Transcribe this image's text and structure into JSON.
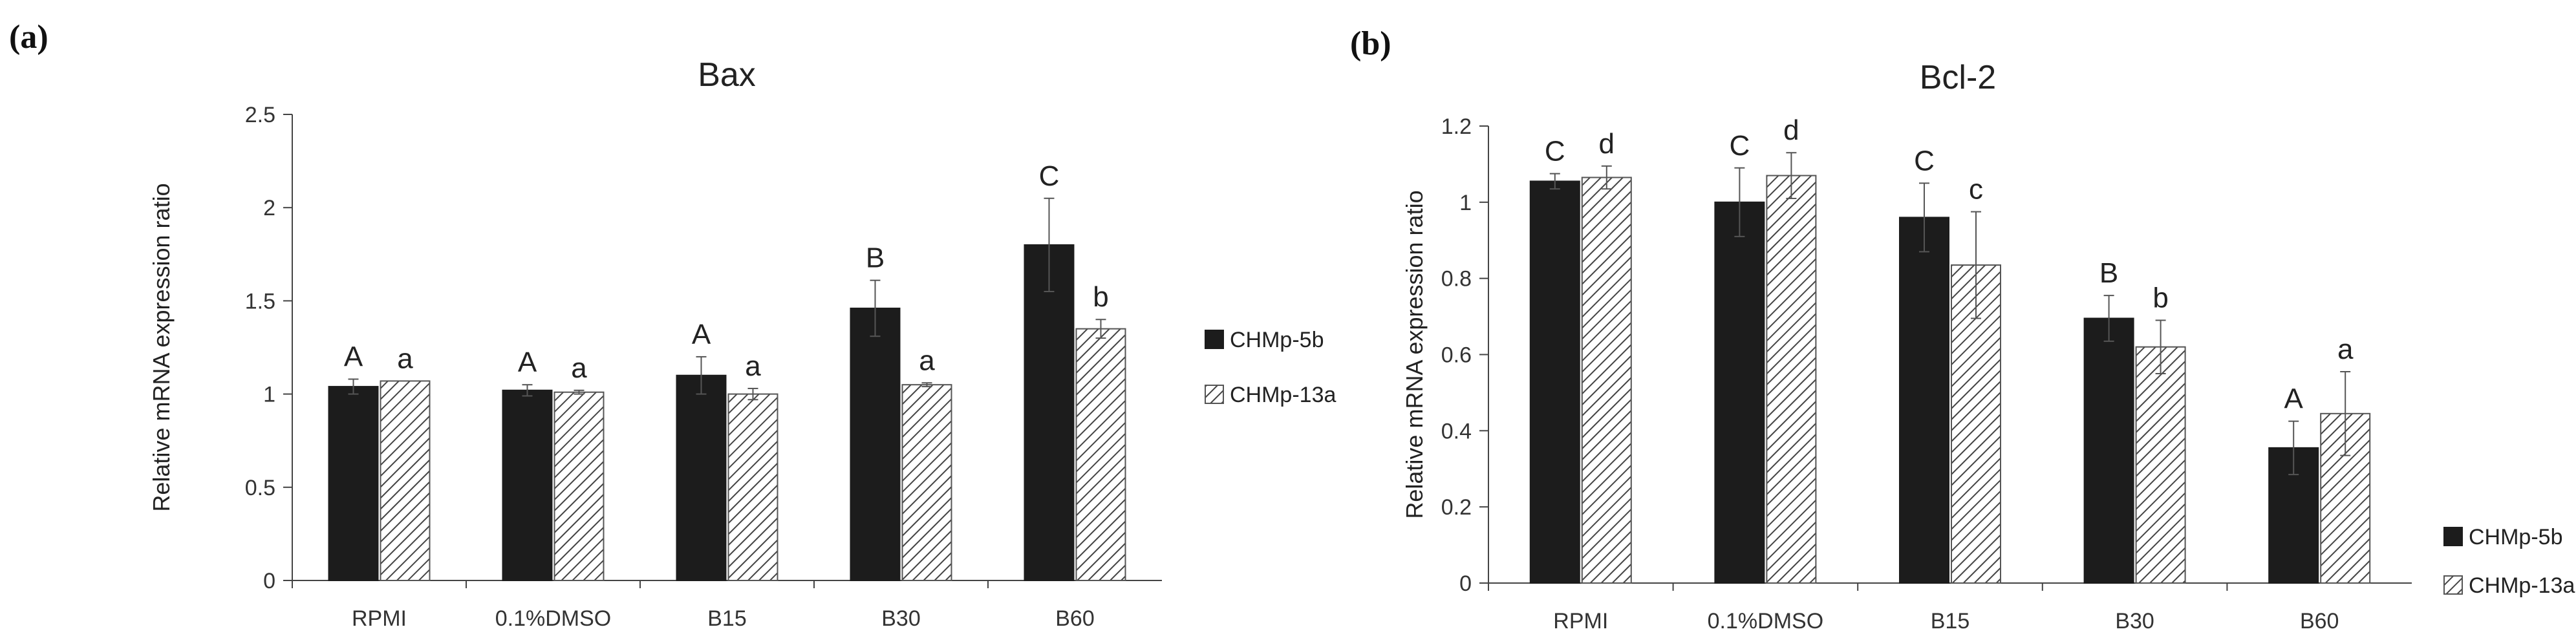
{
  "chart_data": [
    {
      "panel": "(a)",
      "type": "bar",
      "title": "Bax",
      "xlabel": "",
      "ylabel": "Relative mRNA expression ratio",
      "ylim": [
        0,
        2.5
      ],
      "yticks": [
        0,
        0.5,
        1,
        1.5,
        2,
        2.5
      ],
      "ytick_labels": [
        "0",
        "0.5",
        "1",
        "1.5",
        "2",
        "2.5"
      ],
      "categories": [
        "RPMI",
        "0.1%DMSO",
        "B15",
        "B30",
        "B60"
      ],
      "series": [
        {
          "name": "CHMp-5b",
          "pattern": "solid",
          "values": [
            1.04,
            1.02,
            1.1,
            1.46,
            1.8
          ],
          "errors": [
            0.04,
            0.03,
            0.1,
            0.15,
            0.25
          ],
          "letters": [
            "A",
            "A",
            "A",
            "B",
            "C"
          ]
        },
        {
          "name": "CHMp-13a",
          "pattern": "hatched",
          "values": [
            1.07,
            1.01,
            1.0,
            1.05,
            1.35
          ],
          "errors": [
            0.0,
            0.01,
            0.03,
            0.01,
            0.05
          ],
          "letters": [
            "a",
            "a",
            "a",
            "a",
            "b"
          ]
        }
      ],
      "legend_position": "right",
      "grid": false
    },
    {
      "panel": "(b)",
      "type": "bar",
      "title": "Bcl-2",
      "xlabel": "",
      "ylabel": "Relative mRNA expression ratio",
      "ylim": [
        0,
        1.2
      ],
      "yticks": [
        0,
        0.2,
        0.4,
        0.6,
        0.8,
        1,
        1.2
      ],
      "ytick_labels": [
        "0",
        "0.2",
        "0.4",
        "0.6",
        "0.8",
        "1",
        "1.2"
      ],
      "categories": [
        "RPMI",
        "0.1%DMSO",
        "B15",
        "B30",
        "B60"
      ],
      "series": [
        {
          "name": "CHMp-5b",
          "pattern": "solid",
          "values": [
            1.055,
            1.0,
            0.96,
            0.695,
            0.355
          ],
          "errors": [
            0.02,
            0.09,
            0.09,
            0.06,
            0.07
          ],
          "letters": [
            "C",
            "C",
            "C",
            "B",
            "A"
          ]
        },
        {
          "name": "CHMp-13a",
          "pattern": "hatched",
          "values": [
            1.065,
            1.07,
            0.835,
            0.62,
            0.445
          ],
          "errors": [
            0.03,
            0.06,
            0.14,
            0.07,
            0.11
          ],
          "letters": [
            "d",
            "d",
            "c",
            "b",
            "a"
          ]
        }
      ],
      "legend_position": "right",
      "grid": false
    }
  ]
}
